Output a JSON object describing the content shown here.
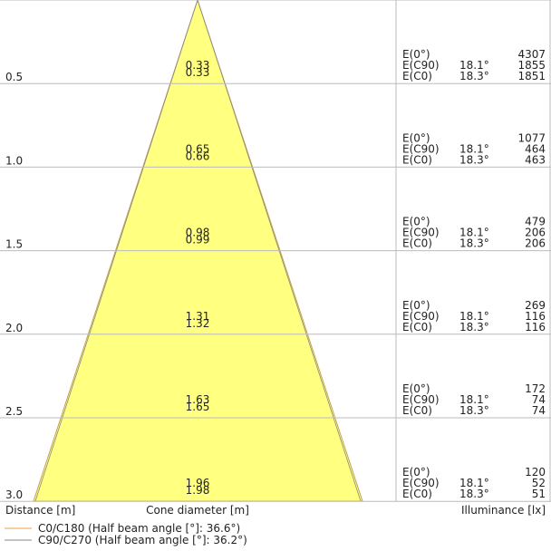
{
  "labels": {
    "e0": "E(0°)",
    "ec90": "E(C90)",
    "ec0": "E(C0)"
  },
  "rows": [
    {
      "distance": "0.5",
      "diameter_c90": 0.33,
      "diameter_c0": 0.33,
      "e0": 4307,
      "angle_c90": "18.1°",
      "e_c90": 1855,
      "angle_c0": "18.3°",
      "e_c0": 1851
    },
    {
      "distance": "1.0",
      "diameter_c90": 0.65,
      "diameter_c0": 0.66,
      "e0": 1077,
      "angle_c90": "18.1°",
      "e_c90": 464,
      "angle_c0": "18.3°",
      "e_c0": 463
    },
    {
      "distance": "1.5",
      "diameter_c90": 0.98,
      "diameter_c0": 0.99,
      "e0": 479,
      "angle_c90": "18.1°",
      "e_c90": 206,
      "angle_c0": "18.3°",
      "e_c0": 206
    },
    {
      "distance": "2.0",
      "diameter_c90": 1.31,
      "diameter_c0": 1.32,
      "e0": 269,
      "angle_c90": "18.1°",
      "e_c90": 116,
      "angle_c0": "18.3°",
      "e_c0": 116
    },
    {
      "distance": "2.5",
      "diameter_c90": 1.63,
      "diameter_c0": 1.65,
      "e0": 172,
      "angle_c90": "18.1°",
      "e_c90": 74,
      "angle_c0": "18.3°",
      "e_c0": 74
    },
    {
      "distance": "3.0",
      "diameter_c90": 1.96,
      "diameter_c0": 1.98,
      "e0": 120,
      "angle_c90": "18.1°",
      "e_c90": 52,
      "angle_c0": "18.3°",
      "e_c0": 51
    }
  ],
  "footer": {
    "distance": "Distance [m]",
    "diameter": "Cone diameter [m]",
    "illuminance": "Illuminance [lx]"
  },
  "legend": [
    "C0/C180 (Half beam angle [°]: 36.6°)",
    "C90/C270 (Half beam angle [°]: 36.2°)"
  ]
}
